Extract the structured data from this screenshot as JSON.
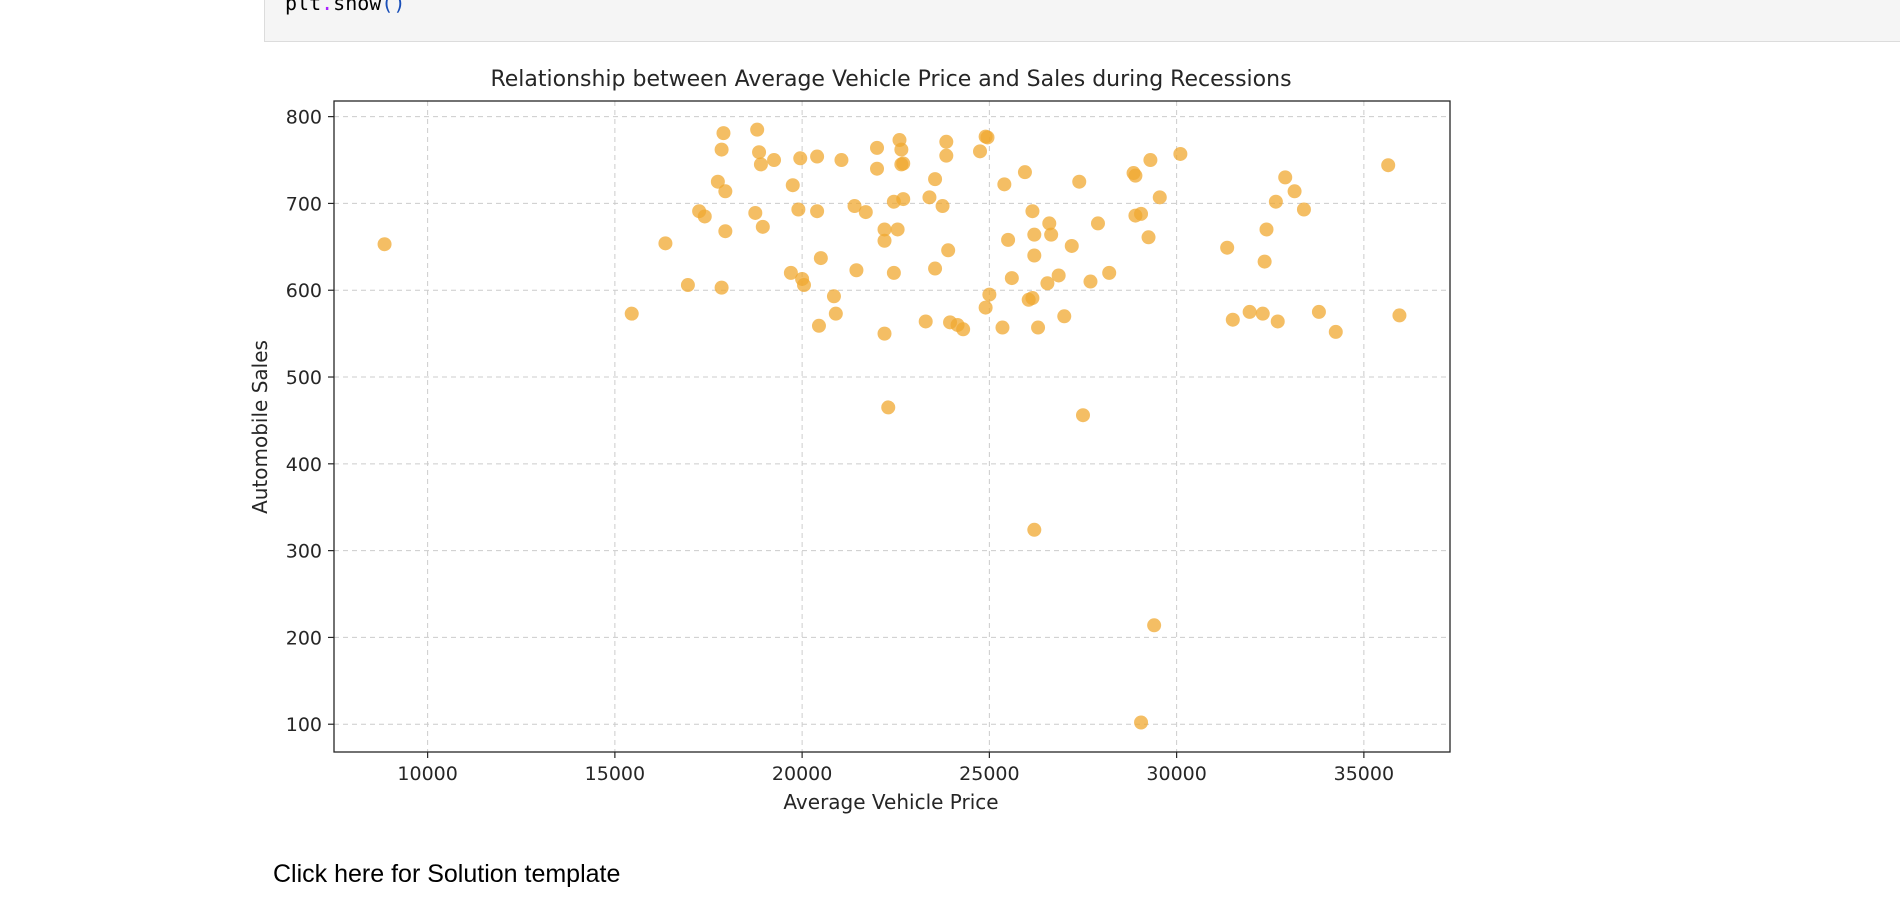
{
  "code_cell": {
    "obj": "plt",
    "dot": ".",
    "method": "show",
    "paren": "()"
  },
  "solution_link": "Click here for Solution template",
  "colors": {
    "point": "#f0a830",
    "axis": "#262626",
    "grid": "#cccccc"
  },
  "chart_data": {
    "type": "scatter",
    "title": "Relationship between Average Vehicle Price and Sales during Recessions",
    "xlabel": "Average Vehicle Price",
    "ylabel": "Automobile Sales",
    "xlim": [
      7500,
      37300
    ],
    "ylim": [
      68,
      818
    ],
    "xticks": [
      10000,
      15000,
      20000,
      25000,
      30000,
      35000
    ],
    "yticks": [
      100,
      200,
      300,
      400,
      500,
      600,
      700,
      800
    ],
    "grid": true,
    "grid_style": "dashed",
    "point_alpha": 0.75,
    "points": [
      [
        8850,
        653
      ],
      [
        15450,
        573
      ],
      [
        16350,
        654
      ],
      [
        16950,
        606
      ],
      [
        17250,
        691
      ],
      [
        17400,
        685
      ],
      [
        17750,
        725
      ],
      [
        17850,
        762
      ],
      [
        17900,
        781
      ],
      [
        17850,
        603
      ],
      [
        17950,
        668
      ],
      [
        17950,
        714
      ],
      [
        18750,
        689
      ],
      [
        18800,
        785
      ],
      [
        18850,
        759
      ],
      [
        18900,
        745
      ],
      [
        18950,
        673
      ],
      [
        19250,
        750
      ],
      [
        19700,
        620
      ],
      [
        19750,
        721
      ],
      [
        19900,
        693
      ],
      [
        19950,
        752
      ],
      [
        20000,
        613
      ],
      [
        20050,
        606
      ],
      [
        20400,
        691
      ],
      [
        20400,
        754
      ],
      [
        20450,
        559
      ],
      [
        20500,
        637
      ],
      [
        20850,
        593
      ],
      [
        20900,
        573
      ],
      [
        21050,
        750
      ],
      [
        21400,
        697
      ],
      [
        21450,
        623
      ],
      [
        21700,
        690
      ],
      [
        22000,
        740
      ],
      [
        22000,
        764
      ],
      [
        22200,
        550
      ],
      [
        22200,
        670
      ],
      [
        22200,
        657
      ],
      [
        22300,
        465
      ],
      [
        22450,
        702
      ],
      [
        22450,
        620
      ],
      [
        22550,
        670
      ],
      [
        22600,
        773
      ],
      [
        22650,
        762
      ],
      [
        22650,
        745
      ],
      [
        22700,
        746
      ],
      [
        22700,
        705
      ],
      [
        23300,
        564
      ],
      [
        23400,
        707
      ],
      [
        23550,
        728
      ],
      [
        23550,
        625
      ],
      [
        23750,
        697
      ],
      [
        23850,
        771
      ],
      [
        23850,
        755
      ],
      [
        23900,
        646
      ],
      [
        23950,
        563
      ],
      [
        24150,
        560
      ],
      [
        24300,
        555
      ],
      [
        24750,
        760
      ],
      [
        24900,
        777
      ],
      [
        24950,
        776
      ],
      [
        24900,
        580
      ],
      [
        25000,
        595
      ],
      [
        25350,
        557
      ],
      [
        25400,
        722
      ],
      [
        25500,
        658
      ],
      [
        25600,
        614
      ],
      [
        25950,
        736
      ],
      [
        26050,
        589
      ],
      [
        26150,
        591
      ],
      [
        26150,
        691
      ],
      [
        26200,
        640
      ],
      [
        26200,
        664
      ],
      [
        26200,
        324
      ],
      [
        26300,
        557
      ],
      [
        26550,
        608
      ],
      [
        26600,
        677
      ],
      [
        26650,
        664
      ],
      [
        26850,
        617
      ],
      [
        27000,
        570
      ],
      [
        27200,
        651
      ],
      [
        27400,
        725
      ],
      [
        27500,
        456
      ],
      [
        27700,
        610
      ],
      [
        27900,
        677
      ],
      [
        28200,
        620
      ],
      [
        28850,
        735
      ],
      [
        28900,
        732
      ],
      [
        28900,
        686
      ],
      [
        29050,
        688
      ],
      [
        29050,
        102
      ],
      [
        29250,
        661
      ],
      [
        29300,
        750
      ],
      [
        29400,
        214
      ],
      [
        29550,
        707
      ],
      [
        30100,
        757
      ],
      [
        31350,
        649
      ],
      [
        31500,
        566
      ],
      [
        31950,
        575
      ],
      [
        32300,
        573
      ],
      [
        32350,
        633
      ],
      [
        32400,
        670
      ],
      [
        32650,
        702
      ],
      [
        32700,
        564
      ],
      [
        32900,
        730
      ],
      [
        33150,
        714
      ],
      [
        33400,
        693
      ],
      [
        33800,
        575
      ],
      [
        34250,
        552
      ],
      [
        35650,
        744
      ],
      [
        35950,
        571
      ]
    ]
  }
}
